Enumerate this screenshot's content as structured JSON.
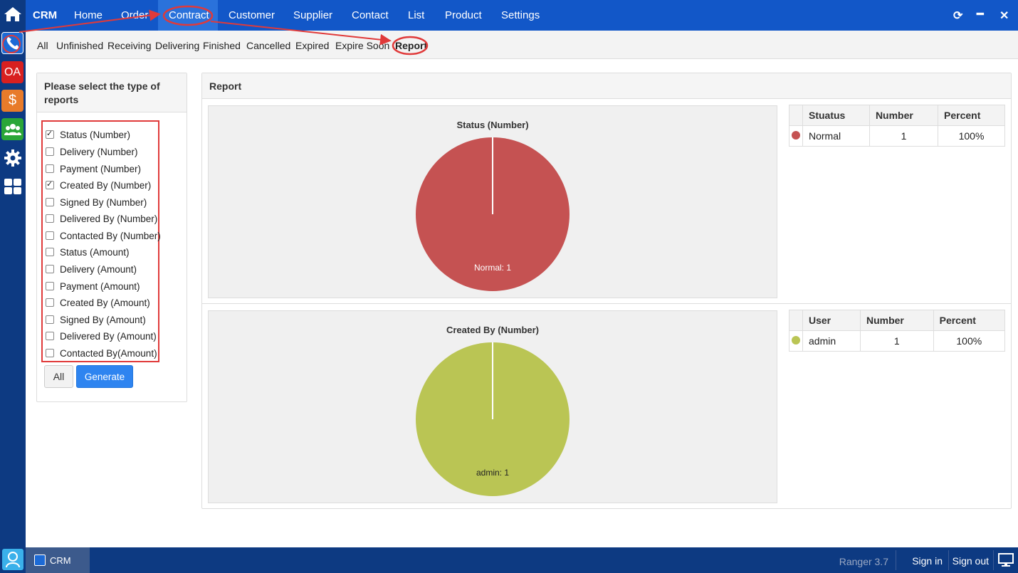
{
  "rail": {
    "oa_label": "OA",
    "dollar_label": "$",
    "items": [
      "home-icon",
      "phone-icon",
      "oa-icon",
      "dollar-icon",
      "users-icon",
      "gear-icon",
      "grid-icon"
    ]
  },
  "topnav": {
    "brand": "CRM",
    "items": [
      "Home",
      "Order",
      "Contract",
      "Customer",
      "Supplier",
      "Contact",
      "List",
      "Product",
      "Settings"
    ],
    "active": "Contract"
  },
  "subtabs": {
    "items": [
      "All",
      "Unfinished",
      "Receiving",
      "Delivering",
      "Finished",
      "Cancelled",
      "Expired",
      "Expire Soon",
      "Report"
    ],
    "active": "Report"
  },
  "left_panel": {
    "title": "Please select the type of reports",
    "options": [
      {
        "label": "Status (Number)",
        "checked": true
      },
      {
        "label": "Delivery (Number)",
        "checked": false
      },
      {
        "label": "Payment (Number)",
        "checked": false
      },
      {
        "label": "Created By (Number)",
        "checked": true
      },
      {
        "label": "Signed By (Number)",
        "checked": false
      },
      {
        "label": "Delivered By (Number)",
        "checked": false
      },
      {
        "label": "Contacted By (Number)",
        "checked": false
      },
      {
        "label": "Status (Amount)",
        "checked": false
      },
      {
        "label": "Delivery (Amount)",
        "checked": false
      },
      {
        "label": "Payment (Amount)",
        "checked": false
      },
      {
        "label": "Created By (Amount)",
        "checked": false
      },
      {
        "label": "Signed By (Amount)",
        "checked": false
      },
      {
        "label": "Delivered By (Amount)",
        "checked": false
      },
      {
        "label": "Contacted By(Amount)",
        "checked": false
      }
    ],
    "all_button": "All",
    "generate_button": "Generate"
  },
  "report": {
    "title": "Report",
    "charts": [
      {
        "title": "Status (Number)",
        "slice_label": "Normal: 1",
        "color": "#c55252",
        "table": {
          "headers": [
            "",
            "Stuatus",
            "Number",
            "Percent"
          ],
          "rows": [
            {
              "name": "Normal",
              "number": "1",
              "percent": "100%"
            }
          ]
        }
      },
      {
        "title": "Created By (Number)",
        "slice_label": "admin: 1",
        "color": "#bac554",
        "table": {
          "headers": [
            "",
            "User",
            "Number",
            "Percent"
          ],
          "rows": [
            {
              "name": "admin",
              "number": "1",
              "percent": "100%"
            }
          ]
        }
      }
    ]
  },
  "chart_data": [
    {
      "type": "pie",
      "title": "Status (Number)",
      "categories": [
        "Normal"
      ],
      "values": [
        1
      ]
    },
    {
      "type": "pie",
      "title": "Created By (Number)",
      "categories": [
        "admin"
      ],
      "values": [
        1
      ]
    }
  ],
  "bottombar": {
    "task_label": "CRM",
    "version": "Ranger 3.7",
    "sign_in": "Sign in",
    "sign_out": "Sign out"
  },
  "colors": {
    "nav_blue": "#1257c8",
    "rail_blue": "#0d3a82",
    "accent_button": "#2e84f0",
    "annotation_red": "#e03a3a"
  }
}
